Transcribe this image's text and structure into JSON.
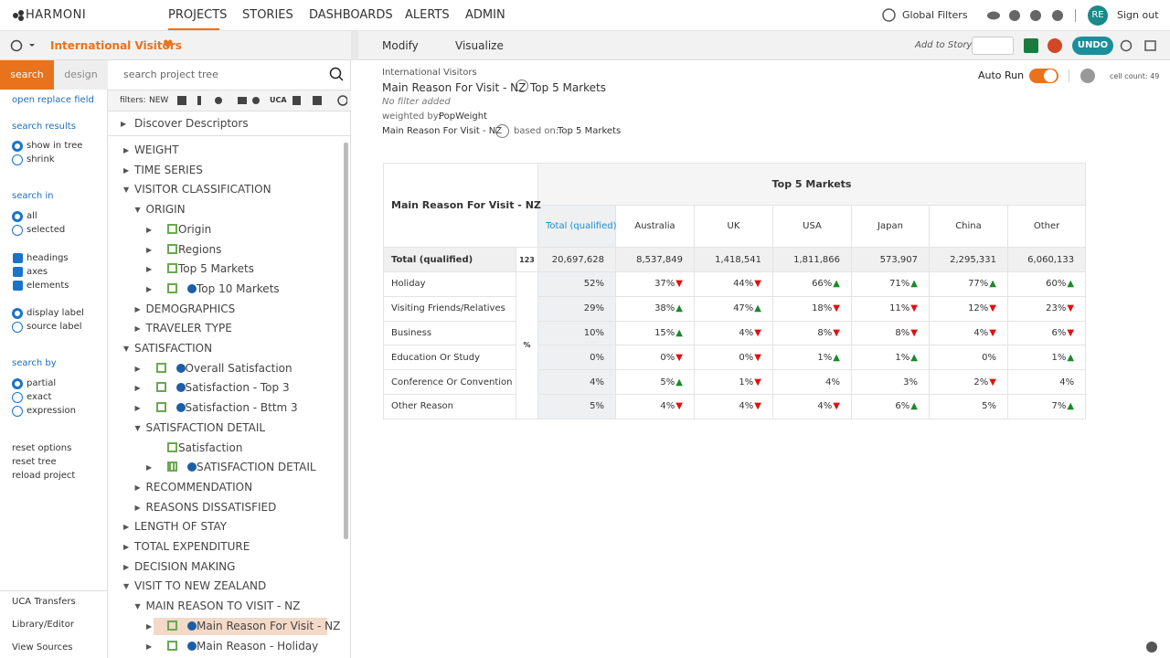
{
  "nav": {
    "logo": "HARMONI",
    "items": [
      "PROJECTS",
      "STORIES",
      "DASHBOARDS",
      "ALERTS",
      "ADMIN"
    ],
    "active": 0,
    "global_filters": "Global Filters",
    "avatar": "RE",
    "sign_out": "Sign out"
  },
  "project": {
    "name": "International Visitors"
  },
  "toolbar": {
    "tabs": [
      "Modify",
      "Visualize"
    ],
    "add_to_story": "Add to Story",
    "undo": "UNDO"
  },
  "sidebar": {
    "tabs": [
      "search",
      "design"
    ],
    "open_replace": "open replace field",
    "search_results": {
      "heading": "search results",
      "options": [
        "show in tree",
        "shrink"
      ],
      "selected": 0
    },
    "search_in": {
      "heading": "search in",
      "options": [
        "all",
        "selected"
      ],
      "selected": 0
    },
    "checks": [
      "headings",
      "axes",
      "elements"
    ],
    "label_mode": {
      "options": [
        "display label",
        "source label"
      ],
      "selected": 0
    },
    "search_by": {
      "heading": "search by",
      "options": [
        "partial",
        "exact",
        "expression"
      ],
      "selected": 0
    },
    "links": [
      "reset options",
      "reset tree",
      "reload project"
    ],
    "bottom": [
      "UCA Transfers",
      "Library/Editor",
      "View Sources"
    ]
  },
  "tree": {
    "search_placeholder": "search project tree",
    "filters_label": "filters:",
    "filters_new": "NEW",
    "filters_uca": "UCA",
    "top": "Discover Descriptors",
    "items": [
      {
        "label": "WEIGHT",
        "level": 0
      },
      {
        "label": "TIME SERIES",
        "level": 0
      },
      {
        "label": "VISITOR CLASSIFICATION",
        "level": 0,
        "open": true
      },
      {
        "label": "ORIGIN",
        "level": 1,
        "open": true
      },
      {
        "label": "Origin",
        "level": 2,
        "icon": "variable"
      },
      {
        "label": "Regions",
        "level": 2,
        "icon": "regions"
      },
      {
        "label": "Top 5 Markets",
        "level": 2,
        "icon": "top"
      },
      {
        "label": "Top 10 Markets",
        "level": 2,
        "icon": "variable",
        "info": true
      },
      {
        "label": "DEMOGRAPHICS",
        "level": 1
      },
      {
        "label": "TRAVELER TYPE",
        "level": 1
      },
      {
        "label": "SATISFACTION",
        "level": 0,
        "open": true
      },
      {
        "label": "Overall Satisfaction",
        "level": 1,
        "icon": "variable",
        "info": true
      },
      {
        "label": "Satisfaction - Top 3",
        "level": 1,
        "icon": "variable",
        "info": true
      },
      {
        "label": "Satisfaction - Bttm 3",
        "level": 1,
        "icon": "variable",
        "info": true
      },
      {
        "label": "SATISFACTION DETAIL",
        "level": 1,
        "open": true
      },
      {
        "label": "Satisfaction",
        "level": 2,
        "icon": "bar",
        "leaf": true
      },
      {
        "label": "SATISFACTION DETAIL",
        "level": 2,
        "icon": "grid",
        "info": true
      },
      {
        "label": "RECOMMENDATION",
        "level": 1
      },
      {
        "label": "REASONS DISSATISFIED",
        "level": 1
      },
      {
        "label": "LENGTH OF STAY",
        "level": 0
      },
      {
        "label": "TOTAL EXPENDITURE",
        "level": 0
      },
      {
        "label": "DECISION MAKING",
        "level": 0
      },
      {
        "label": "VISIT TO NEW ZEALAND",
        "level": 0,
        "open": true
      },
      {
        "label": "MAIN REASON TO VISIT - NZ",
        "level": 1,
        "open": true
      },
      {
        "label": "Main Reason For Visit - NZ",
        "level": 2,
        "icon": "variable",
        "info": true,
        "selected": true
      },
      {
        "label": "Main Reason - Holiday",
        "level": 2,
        "icon": "variable",
        "info": true
      }
    ]
  },
  "report": {
    "project": "International Visitors",
    "row_var": "Main Reason For Visit - NZ",
    "col_var": "Top 5 Markets",
    "filter": "No filter added",
    "weighted_label": "weighted by:",
    "weight": "PopWeight",
    "base_var": "Main Reason For Visit - NZ",
    "based_on_label": "based on:",
    "base": "Top 5 Markets",
    "auto_run": "Auto Run",
    "cell_count": "cell count: 49"
  },
  "table": {
    "corner": "Main Reason For Visit - NZ",
    "banner": "Top 5 Markets",
    "columns": [
      "Total (qualified)",
      "Australia",
      "UK",
      "USA",
      "Japan",
      "China",
      "Other"
    ],
    "total_row": {
      "label": "Total (qualified)",
      "stat": "123",
      "cells": [
        "20,697,628",
        "8,537,849",
        "1,418,541",
        "1,811,866",
        "573,907",
        "2,295,331",
        "6,060,133"
      ]
    },
    "stat": "%",
    "rows": [
      {
        "label": "Holiday",
        "cells": [
          "52%",
          "37%",
          "44%",
          "66%",
          "71%",
          "77%",
          "60%"
        ],
        "sig": [
          null,
          "down",
          "down",
          "up",
          "up",
          "up",
          "up"
        ]
      },
      {
        "label": "Visiting Friends/Relatives",
        "cells": [
          "29%",
          "38%",
          "47%",
          "18%",
          "11%",
          "12%",
          "23%"
        ],
        "sig": [
          null,
          "up",
          "up",
          "down",
          "down",
          "down",
          "down"
        ]
      },
      {
        "label": "Business",
        "cells": [
          "10%",
          "15%",
          "4%",
          "8%",
          "8%",
          "4%",
          "6%"
        ],
        "sig": [
          null,
          "up",
          "down",
          "down",
          "down",
          "down",
          "down"
        ]
      },
      {
        "label": "Education Or Study",
        "cells": [
          "0%",
          "0%",
          "0%",
          "1%",
          "1%",
          "0%",
          "1%"
        ],
        "sig": [
          null,
          "down",
          "down",
          "up",
          "up",
          null,
          "up"
        ]
      },
      {
        "label": "Conference Or Convention",
        "cells": [
          "4%",
          "5%",
          "1%",
          "4%",
          "3%",
          "2%",
          "4%"
        ],
        "sig": [
          null,
          "up",
          "down",
          null,
          null,
          "down",
          null
        ]
      },
      {
        "label": "Other Reason",
        "cells": [
          "5%",
          "4%",
          "4%",
          "4%",
          "6%",
          "5%",
          "7%"
        ],
        "sig": [
          null,
          "down",
          "down",
          "down",
          "up",
          null,
          "up"
        ]
      }
    ]
  }
}
